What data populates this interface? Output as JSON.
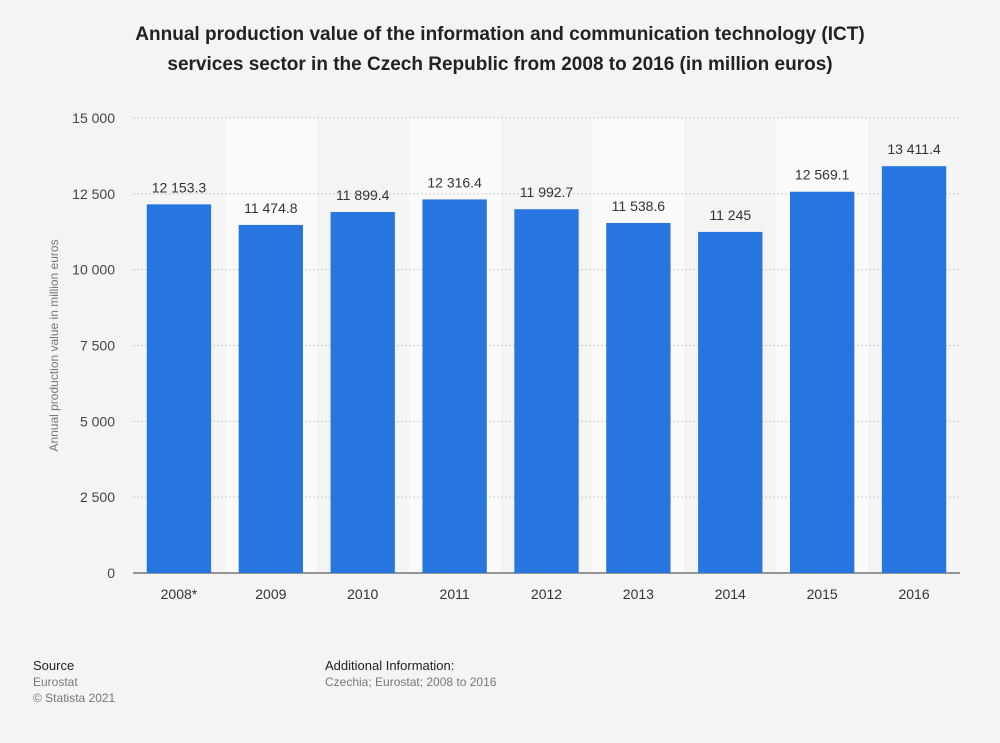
{
  "title": {
    "line1": "Annual production value of the information and communication technology (ICT)",
    "line2": "services sector in the Czech Republic from 2008 to 2016 (in million euros)"
  },
  "colors": {
    "bar": "#2775de",
    "grid": "#cccccc",
    "band": "#fafafa",
    "background": "#f4f4f4"
  },
  "chart_data": {
    "type": "bar",
    "categories": [
      "2008*",
      "2009",
      "2010",
      "2011",
      "2012",
      "2013",
      "2014",
      "2015",
      "2016"
    ],
    "values": [
      12153.3,
      11474.8,
      11899.4,
      12316.4,
      11992.7,
      11538.6,
      11245,
      12569.1,
      13411.4
    ],
    "value_labels": [
      "12 153.3",
      "11 474.8",
      "11 899.4",
      "12 316.4",
      "11 992.7",
      "11 538.6",
      "11 245",
      "12 569.1",
      "13 411.4"
    ],
    "ylabel": "Annual production value in million euros",
    "xlabel": "",
    "ylim": [
      0,
      15000
    ],
    "yticks": [
      0,
      2500,
      5000,
      7500,
      10000,
      12500,
      15000
    ],
    "ytick_labels": [
      "0",
      "2 500",
      "5 000",
      "7 500",
      "10 000",
      "12 500",
      "15 000"
    ],
    "grid": true,
    "legend": "none"
  },
  "footer": {
    "source_heading": "Source",
    "source_name": "Eurostat",
    "copyright": "© Statista 2021",
    "additional_heading": "Additional Information:",
    "additional_text": "Czechia; Eurostat; 2008 to 2016"
  }
}
